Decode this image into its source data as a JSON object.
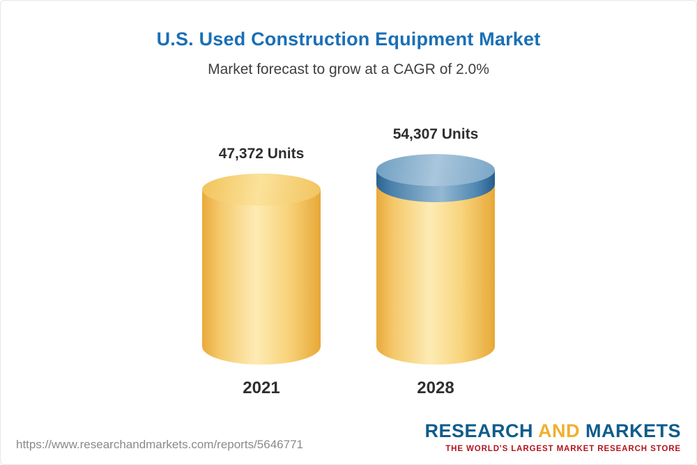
{
  "chart_data": {
    "type": "bar",
    "variant": "3d-cylinder",
    "title": "U.S. Used Construction Equipment Market",
    "subtitle": "Market forecast to grow at a CAGR of 2.0%",
    "categories": [
      "2021",
      "2028"
    ],
    "values": [
      47372,
      54307
    ],
    "value_labels": [
      "47,372 Units",
      "54,307 Units"
    ],
    "unit": "Units",
    "cagr_percent": 2.0,
    "legend_position": "none",
    "grid": false,
    "colors": {
      "base_cylinder": "#f8d47c",
      "growth_cap": "#5e8fb4",
      "title": "#1a6fb5"
    }
  },
  "footer": {
    "url": "https://www.researchandmarkets.com/reports/5646771",
    "logo": {
      "word1": "RESEARCH",
      "word2": "AND",
      "word3": "MARKETS",
      "tagline": "THE WORLD'S LARGEST MARKET RESEARCH STORE"
    }
  }
}
